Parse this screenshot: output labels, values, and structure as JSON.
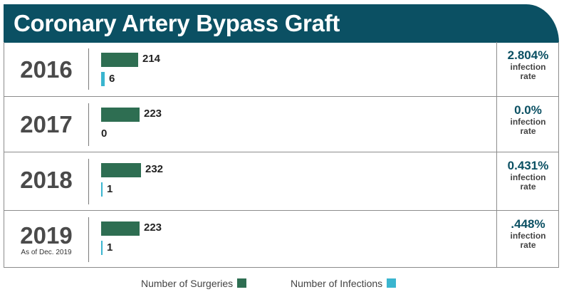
{
  "chart_data": {
    "type": "bar",
    "title": "Coronary Artery Bypass Graft",
    "categories": [
      "2016",
      "2017",
      "2018",
      "2019"
    ],
    "category_notes": [
      "",
      "",
      "",
      "As of Dec. 2019"
    ],
    "series": [
      {
        "name": "Number of Surgeries",
        "values": [
          214,
          223,
          232,
          223
        ],
        "color": "#2e6e52"
      },
      {
        "name": "Number of Infections",
        "values": [
          6,
          0,
          1,
          1
        ],
        "color": "#3ab5cf"
      }
    ],
    "infection_rates": [
      "2.804%",
      "0.0%",
      "0.431%",
      ".448%"
    ],
    "rate_label": "infection rate",
    "legend": [
      "Number of Surgeries",
      "Number of Infections"
    ]
  }
}
